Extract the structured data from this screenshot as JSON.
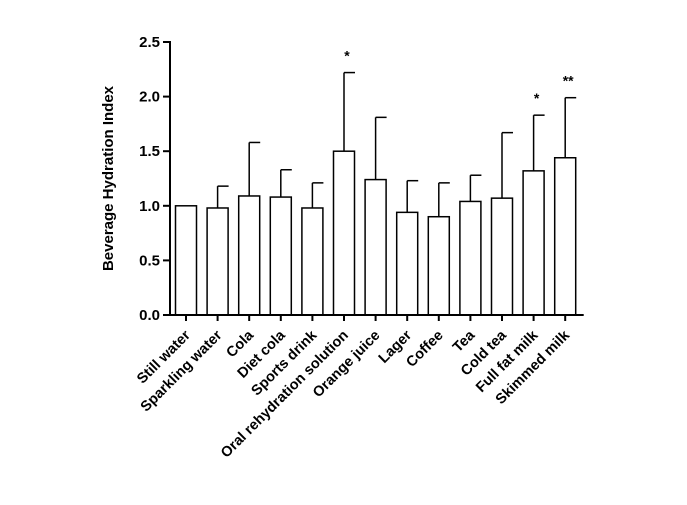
{
  "chart_data": {
    "type": "bar",
    "title": "",
    "xlabel": "",
    "ylabel": "Beverage Hydration Index",
    "ylim": [
      0,
      2.5
    ],
    "yticks": [
      "0.0",
      "0.5",
      "1.0",
      "1.5",
      "2.0",
      "2.5"
    ],
    "categories": [
      "Still water",
      "Sparkling water",
      "Cola",
      "Diet cola",
      "Sports drink",
      "Oral rehydration solution",
      "Orange juice",
      "Lager",
      "Coffee",
      "Tea",
      "Cold tea",
      "Full fat milk",
      "Skimmed milk"
    ],
    "values": [
      1.0,
      0.98,
      1.09,
      1.08,
      0.98,
      1.5,
      1.24,
      0.94,
      0.9,
      1.04,
      1.07,
      1.32,
      1.44
    ],
    "error_upper": [
      1.0,
      1.18,
      1.58,
      1.33,
      1.21,
      2.22,
      1.81,
      1.23,
      1.21,
      1.28,
      1.67,
      1.83,
      1.99
    ],
    "significance": [
      "",
      "",
      "",
      "",
      "",
      "*",
      "",
      "",
      "",
      "",
      "",
      "*",
      "**"
    ],
    "grid": false
  }
}
